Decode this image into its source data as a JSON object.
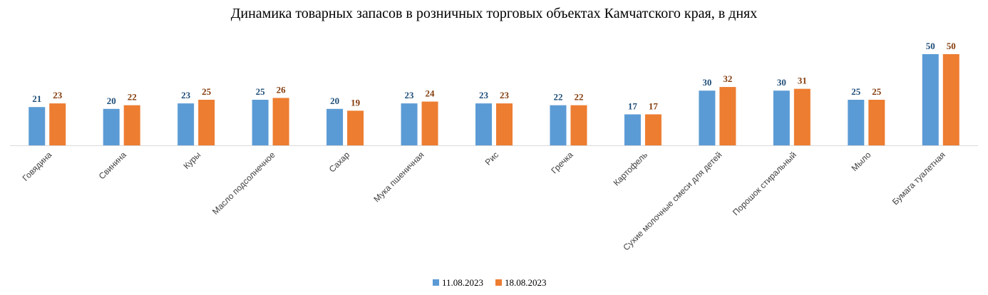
{
  "chart_data": {
    "type": "bar",
    "title": "Динамика товарных запасов в розничных торговых объектах Камчатского края, в днях",
    "xlabel": "",
    "ylabel": "",
    "ylim": [
      0,
      50
    ],
    "grid": false,
    "legend_position": "bottom",
    "categories": [
      "Говядина",
      "Свинина",
      "Куры",
      "Масло подсолнечное",
      "Сахар",
      "Мука пшеничная",
      "Рис",
      "Гречка",
      "Картофель",
      "Сухие молочные смеси для детей",
      "Порошок стиральный",
      "Мыло",
      "Бумага туалетная"
    ],
    "series": [
      {
        "name": "11.08.2023",
        "color": "#5B9BD5",
        "label_color": "#1F4E79",
        "values": [
          21,
          20,
          23,
          25,
          20,
          23,
          23,
          22,
          17,
          30,
          30,
          25,
          50
        ]
      },
      {
        "name": "18.08.2023",
        "color": "#ED7D31",
        "label_color": "#843C0C",
        "values": [
          23,
          22,
          25,
          26,
          19,
          24,
          23,
          22,
          17,
          32,
          31,
          25,
          50
        ]
      }
    ]
  }
}
